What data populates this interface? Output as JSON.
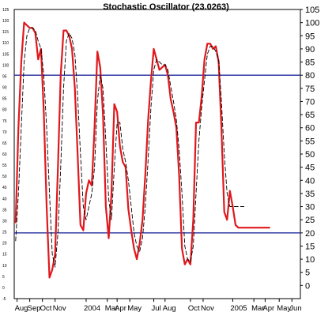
{
  "chart_data": {
    "type": "line",
    "title": "Stochastic Oscillator (23.0263)",
    "ylim": [
      -5,
      105
    ],
    "right_y_ticks": [
      0,
      5,
      10,
      15,
      20,
      25,
      30,
      35,
      40,
      45,
      50,
      55,
      60,
      65,
      70,
      75,
      80,
      85,
      90,
      95,
      100,
      105
    ],
    "left_y_ticks": [
      -5,
      0,
      5,
      10,
      15,
      20,
      25,
      30,
      35,
      40,
      45,
      50,
      55,
      60,
      65,
      70,
      75,
      80,
      85,
      90,
      95,
      100,
      105,
      110,
      115,
      120,
      125
    ],
    "left_y_ticks_visible": [
      -5,
      0,
      5,
      10,
      15,
      20,
      25,
      30,
      35,
      40,
      45,
      50,
      55,
      60,
      65,
      70,
      75,
      80,
      85,
      90,
      95,
      100,
      105,
      110,
      115,
      120,
      125
    ],
    "x_labels": [
      {
        "label": "Aug",
        "x": 0
      },
      {
        "label": "Sep",
        "x": 9
      },
      {
        "label": "Oct",
        "x": 18
      },
      {
        "label": "Nov",
        "x": 27
      },
      {
        "label": "2004",
        "x": 49
      },
      {
        "label": "Mar",
        "x": 64
      },
      {
        "label": "Apr",
        "x": 71
      },
      {
        "label": "May",
        "x": 80
      },
      {
        "label": "Jul",
        "x": 97
      },
      {
        "label": "Aug",
        "x": 105
      },
      {
        "label": "Oct",
        "x": 123
      },
      {
        "label": "Nov",
        "x": 132
      },
      {
        "label": "2005",
        "x": 153
      },
      {
        "label": "Mar",
        "x": 168
      },
      {
        "label": "Apr",
        "x": 176
      },
      {
        "label": "May",
        "x": 186
      },
      {
        "label": "Jun",
        "x": 195
      }
    ],
    "x_range": [
      -2,
      201
    ],
    "horizontal_lines": [
      20,
      80
    ],
    "grid": false,
    "series": [
      {
        "style": "solid",
        "color": "#e0181d",
        "x": [
          -1,
          1,
          3,
          5,
          7,
          9,
          11,
          13,
          15,
          17,
          19,
          21,
          23,
          25,
          27,
          29,
          31,
          33,
          35,
          37,
          39,
          41,
          43,
          45,
          47,
          49,
          51,
          53,
          55,
          57,
          59,
          61,
          63,
          65,
          67,
          69,
          71,
          73,
          75,
          77,
          79,
          81,
          83,
          85,
          87,
          89,
          91,
          93,
          95,
          97,
          99,
          101,
          103,
          105,
          107,
          109,
          111,
          113,
          115,
          117,
          119,
          121,
          123,
          125,
          127,
          129,
          131,
          133,
          135,
          137,
          139,
          141,
          143,
          145,
          147,
          149,
          151,
          153,
          155,
          157,
          159,
          161,
          163,
          165,
          167,
          169,
          171,
          173,
          175,
          177,
          179
        ],
        "values": [
          24,
          60,
          85,
          100,
          99,
          98,
          98,
          96,
          86,
          90,
          66,
          30,
          3,
          6,
          12,
          45,
          80,
          97,
          97,
          95,
          90,
          75,
          50,
          23,
          21,
          35,
          40,
          38,
          60,
          89,
          83,
          65,
          30,
          18,
          35,
          69,
          66,
          53,
          47,
          45,
          29,
          21,
          14,
          10,
          16,
          25,
          42,
          63,
          78,
          90,
          86,
          82,
          83,
          84,
          80,
          71,
          66,
          60,
          42,
          14,
          8,
          10,
          8,
          25,
          62,
          62,
          72,
          86,
          92,
          92,
          90,
          91,
          85,
          60,
          28,
          25,
          36,
          30,
          23,
          22,
          22,
          22,
          22,
          22,
          22,
          22,
          22,
          22,
          22,
          22,
          22
        ]
      },
      {
        "style": "dashed",
        "color": "#000000",
        "x": [
          -1,
          1,
          3,
          5,
          7,
          9,
          11,
          13,
          15,
          17,
          19,
          21,
          23,
          25,
          27,
          29,
          31,
          33,
          35,
          37,
          39,
          41,
          43,
          45,
          47,
          49,
          51,
          53,
          55,
          57,
          59,
          61,
          63,
          65,
          67,
          69,
          71,
          73,
          75,
          77,
          79,
          81,
          83,
          85,
          87,
          89,
          91,
          93,
          95,
          97,
          99,
          101,
          103,
          105,
          107,
          109,
          111,
          113,
          115,
          117,
          119,
          121,
          123,
          125,
          127,
          129,
          131,
          133,
          135,
          137,
          139,
          141,
          143,
          145,
          147,
          149,
          151,
          153,
          155,
          157,
          159,
          161
        ],
        "values": [
          17,
          35,
          60,
          85,
          95,
          98,
          98,
          97,
          93,
          90,
          80,
          60,
          35,
          12,
          7,
          20,
          45,
          75,
          93,
          96,
          94,
          88,
          72,
          50,
          30,
          25,
          30,
          35,
          45,
          70,
          80,
          75,
          55,
          33,
          25,
          45,
          62,
          62,
          52,
          47,
          40,
          30,
          20,
          15,
          13,
          18,
          30,
          48,
          68,
          82,
          86,
          85,
          84,
          84,
          82,
          76,
          70,
          63,
          52,
          35,
          15,
          10,
          9,
          15,
          35,
          55,
          68,
          78,
          88,
          91,
          91,
          89,
          86,
          70,
          50,
          35,
          30,
          30,
          30,
          30,
          30,
          30
        ]
      }
    ]
  }
}
